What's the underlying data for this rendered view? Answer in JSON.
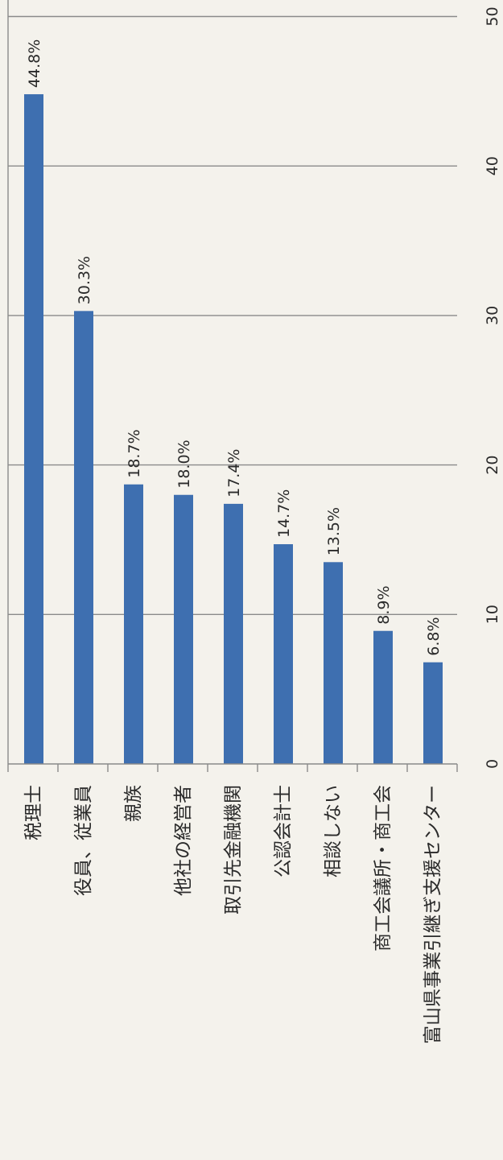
{
  "chart_data": {
    "type": "bar",
    "orientation": "horizontal",
    "categories": [
      "税理士",
      "役員、従業員",
      "親族",
      "他社の経営者",
      "取引先金融機関",
      "公認会計士",
      "相談しない",
      "商工会議所・商工会",
      "富山県事業引継ぎ支援センター"
    ],
    "values": [
      44.8,
      30.3,
      18.7,
      18.0,
      17.4,
      14.7,
      13.5,
      8.9,
      6.8
    ],
    "data_labels": [
      "44.8%",
      "30.3%",
      "18.7%",
      "18.0%",
      "17.4%",
      "14.7%",
      "13.5%",
      "8.9%",
      "6.8%"
    ],
    "ticks": [
      0,
      10,
      20,
      30,
      40,
      50
    ],
    "tick_labels": [
      "0",
      "10",
      "20",
      "30",
      "40",
      "50"
    ],
    "xlim": [
      0,
      50
    ],
    "grid": true,
    "bar_color": "#3e6fb0"
  }
}
